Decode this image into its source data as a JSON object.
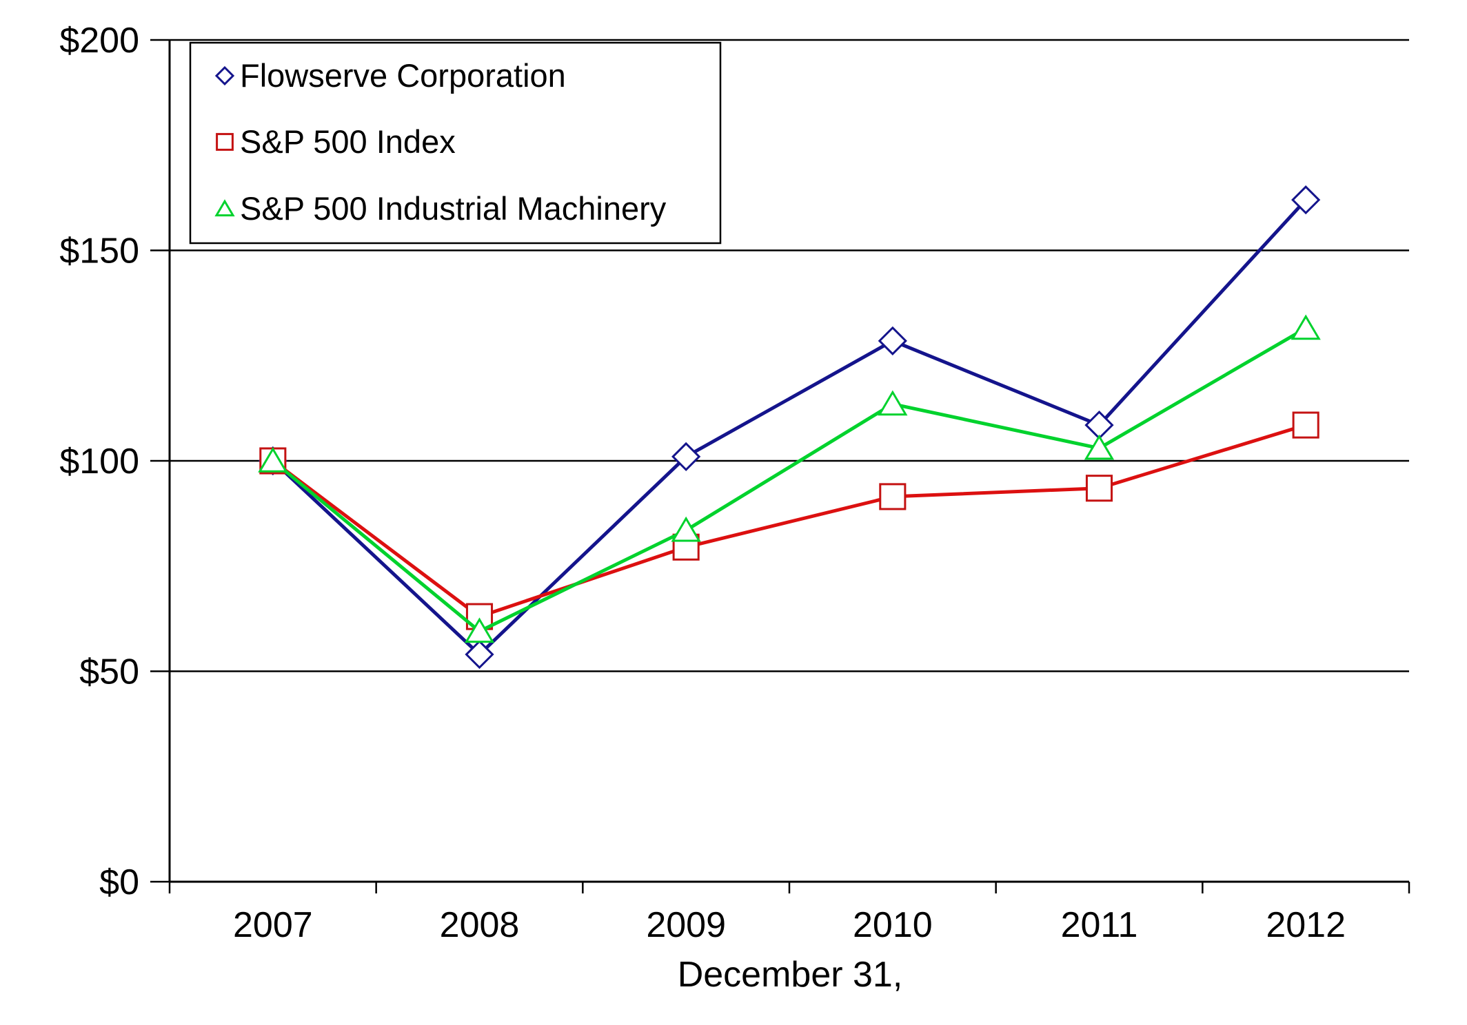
{
  "chart_data": {
    "type": "line",
    "title": "",
    "xlabel": "December 31,",
    "ylabel": "",
    "categories": [
      "2007",
      "2008",
      "2009",
      "2010",
      "2011",
      "2012"
    ],
    "series": [
      {
        "name": "Flowserve Corporation",
        "marker": "diamond",
        "color": "#14148c",
        "marker_color": "#14148c",
        "values": [
          100,
          54,
          101,
          128.5,
          108.5,
          162
        ]
      },
      {
        "name": "S&P 500 Index",
        "marker": "square",
        "color": "#dc1010",
        "marker_color": "#c41212",
        "values": [
          100,
          63,
          79.5,
          91.5,
          93.5,
          108.5
        ]
      },
      {
        "name": "S&P 500 Industrial Machinery",
        "marker": "triangle",
        "color": "#00d22d",
        "marker_color": "#00d22d",
        "values": [
          100,
          59.5,
          83.5,
          113.5,
          103,
          131.5
        ]
      }
    ],
    "ylim": [
      0,
      200
    ],
    "y_ticks": [
      {
        "value": 0,
        "label": "$0"
      },
      {
        "value": 50,
        "label": "$50"
      },
      {
        "value": 100,
        "label": "$100"
      },
      {
        "value": 150,
        "label": "$150"
      },
      {
        "value": 200,
        "label": "$200"
      }
    ],
    "grid": true,
    "legend_position": "top-left",
    "marker_fill": "#ffffff",
    "axis_color": "#000000",
    "text_color": "#000000",
    "background": "#ffffff"
  }
}
